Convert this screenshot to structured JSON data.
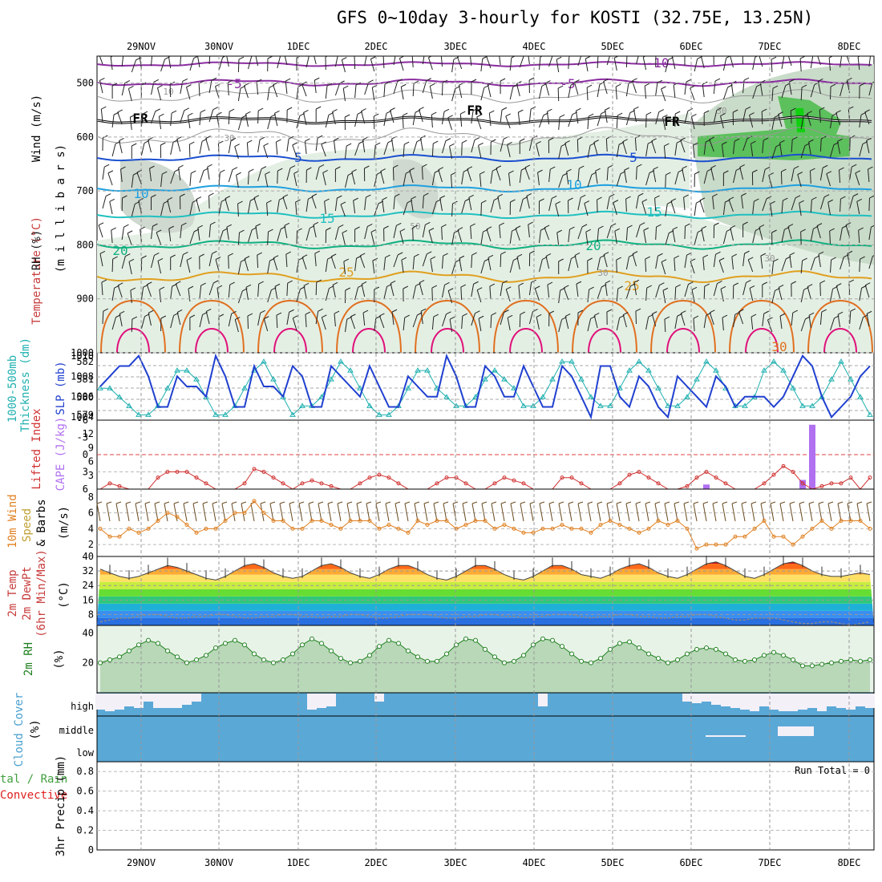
{
  "title": "GFS 0~10day 3-hourly for KOSTI (32.75E, 13.25N)",
  "colors": {
    "temperature": "#c83c3c",
    "wind": "#000000",
    "rh": "#40c040",
    "thickness": "#20b0b0",
    "slp": "#2040d0",
    "lifted": "#d03030",
    "cape": "#b070f0",
    "wind10": "#e08020",
    "speed": "#c0a030",
    "cloud": "#4aa0d0",
    "precip_total": "#40a040",
    "precip_conv": "#e02020",
    "rh2m": "#208020"
  },
  "x_axis": {
    "dates": [
      "29NOV",
      "30NOV",
      "1DEC",
      "2DEC",
      "3DEC",
      "4DEC",
      "5DEC",
      "6DEC",
      "7DEC",
      "8DEC"
    ]
  },
  "panels": {
    "upper": {
      "ylabel_wind": "Wind (m/s)",
      "ylabel_temp": "Temperature (°C)",
      "ylabel_rh": "RH (%)",
      "ylabel_mb": "(m i l l i b a r s)",
      "yticks": [
        "500",
        "600",
        "700",
        "800",
        "900",
        "1000"
      ],
      "contour_labels": {
        "m10": "-10",
        "m5a": "-5",
        "m5b": "-5",
        "fr1": "FR",
        "fr2": "FR",
        "fr3": "FR",
        "p5a": "5",
        "p5b": "5",
        "p10a": "10",
        "p10b": "10",
        "p15a": "15",
        "p15b": "15",
        "p20a": "20",
        "p20b": "20",
        "p25a": "25",
        "p25b": "25",
        "p30": "30",
        "rh10": "10",
        "rh30a": "30",
        "rh30b": "30",
        "rh50": "50",
        "rh30c": "30",
        "rh30d": "30"
      }
    },
    "slp": {
      "ylabel_thick": "Thickness (dm)",
      "ylabel_thick2": "1000-500mb",
      "ylabel_slp": "SLP (mb)",
      "yticks_left": [
        "582",
        "581",
        "580",
        "579"
      ],
      "yticks_right": [
        "1010",
        "1008",
        "1006",
        "1004"
      ]
    },
    "cape": {
      "ylabel_li": "Lifted Index",
      "ylabel_cape": "CAPE (J/kg)",
      "yticks_left": [
        "-6",
        "-3",
        "0",
        "3",
        "6"
      ],
      "yticks_right": [
        "12",
        "9",
        "6",
        "3"
      ]
    },
    "wind10": {
      "ylabel1": "10m Wind",
      "ylabel2": "Speed",
      "ylabel3": "& Barbs",
      "ylabel_units": "(m/s)",
      "yticks": [
        "8",
        "6",
        "4",
        "2"
      ]
    },
    "temp2m": {
      "ylabel1": "2m Temp",
      "ylabel2": "2m DewPt",
      "ylabel3": "(6hr Min/Max)",
      "ylabel_units": "(°C)",
      "yticks": [
        "40",
        "32",
        "24",
        "16",
        "8"
      ]
    },
    "rh2m": {
      "ylabel1": "2m RH",
      "ylabel_units": "(%)",
      "yticks": [
        "40",
        "20"
      ]
    },
    "cloud": {
      "ylabel1": "Cloud Cover",
      "ylabel_units": "(%)",
      "levels": [
        "high",
        "middle",
        "low"
      ]
    },
    "precip": {
      "ylabel1": "tal / Rain",
      "ylabel2": "Convective",
      "ylabel3": "3hr Precip (mm)",
      "yticks": [
        "0.8",
        "0.6",
        "0.4",
        "0.2",
        "0"
      ],
      "run_total": "Run Total = 0"
    }
  },
  "chart_data": [
    {
      "type": "line",
      "title": "SLP and 1000-500mb Thickness",
      "series": [
        {
          "name": "SLP (mb)",
          "values": [
            1007,
            1008,
            1009,
            1009,
            1010,
            1008,
            1005,
            1005,
            1008,
            1007,
            1007,
            1006,
            1010,
            1008,
            1005,
            1005,
            1009,
            1007,
            1007,
            1006,
            1009,
            1008,
            1005,
            1005,
            1009,
            1008,
            1007,
            1006,
            1009,
            1007,
            1005,
            1005,
            1008,
            1007,
            1006,
            1006,
            1010,
            1008,
            1005,
            1005,
            1009,
            1008,
            1006,
            1006,
            1009,
            1007,
            1005,
            1005,
            1009,
            1008,
            1006,
            1004,
            1009,
            1009,
            1006,
            1005,
            1008,
            1007,
            1005,
            1004,
            1008,
            1007,
            1006,
            1005,
            1008,
            1007,
            1005,
            1006,
            1006,
            1006,
            1005,
            1006,
            1008,
            1010,
            1009,
            1006,
            1004,
            1005,
            1006,
            1008,
            1009
          ]
        },
        {
          "name": "Thickness (dm)",
          "values": [
            580.5,
            580.5,
            580,
            579.5,
            579,
            579,
            579.5,
            580.5,
            581.5,
            581.5,
            581,
            580,
            579,
            579,
            579.5,
            580.5,
            581.5,
            582,
            581,
            580,
            579,
            579.5,
            579.5,
            580,
            581,
            582,
            581.5,
            580.5,
            579.5,
            579,
            579,
            579.5,
            580.5,
            581.5,
            581.5,
            580.5,
            580,
            579.5,
            579.5,
            580,
            581,
            581.5,
            581,
            580.5,
            579.5,
            579.5,
            580,
            581,
            582,
            582,
            581,
            580,
            579.5,
            579.5,
            580.5,
            581.5,
            582,
            581.5,
            580.5,
            579.5,
            579.5,
            580,
            581,
            582,
            581.5,
            580.5,
            579.5,
            579.5,
            580,
            581.5,
            582,
            581.5,
            580.5,
            579.5,
            579.5,
            580,
            581,
            582,
            581,
            580,
            579
          ]
        }
      ]
    },
    {
      "type": "line",
      "title": "Lifted Index and CAPE",
      "series": [
        {
          "name": "Lifted Index",
          "values": [
            6,
            5,
            5.5,
            6,
            6,
            6,
            4,
            3,
            3,
            3,
            4,
            5,
            6,
            6,
            6,
            5,
            2.5,
            3,
            4,
            5,
            6,
            5,
            4.5,
            5,
            5.5,
            6,
            6,
            5,
            4,
            3.5,
            4,
            5,
            6,
            6,
            6,
            5,
            4,
            4,
            5,
            6,
            6,
            5,
            4,
            4.5,
            5,
            6,
            6,
            6,
            4,
            4,
            5,
            6,
            6,
            6,
            5,
            3.5,
            3,
            4,
            5,
            6,
            6,
            5.5,
            4,
            3,
            4,
            5,
            6,
            6,
            6,
            5,
            3.5,
            2,
            3,
            5,
            6,
            5.5,
            5,
            5,
            4,
            6,
            4
          ]
        },
        {
          "name": "CAPE (J/kg)",
          "values": [
            0,
            0,
            0,
            0,
            0,
            0,
            0,
            0,
            0,
            0,
            0,
            0,
            0,
            0,
            0,
            0,
            0,
            0,
            0,
            0,
            0,
            0,
            0,
            0,
            0,
            0,
            0,
            0,
            0,
            0,
            0,
            0,
            0,
            0,
            0,
            0,
            0,
            0,
            0,
            0,
            0,
            0,
            0,
            0,
            0,
            0,
            0,
            0,
            0,
            0,
            0,
            0,
            0,
            0,
            0,
            0,
            0,
            0,
            0,
            0,
            0,
            0,
            0,
            1,
            0,
            0,
            0,
            0,
            0,
            0,
            0,
            0,
            0,
            2,
            14,
            0,
            0,
            0,
            0,
            0,
            0
          ]
        }
      ]
    },
    {
      "type": "line",
      "title": "10m Wind Speed",
      "series": [
        {
          "name": "Speed (m/s)",
          "values": [
            4,
            3,
            3,
            4,
            3.5,
            4,
            5,
            6,
            5.5,
            4.5,
            3.5,
            4,
            4,
            5,
            6,
            6,
            7.5,
            6,
            5,
            5,
            4,
            4,
            5,
            5,
            4.5,
            4,
            5,
            5,
            5,
            4,
            4.5,
            4,
            3.5,
            5,
            4.5,
            5,
            5,
            4,
            4.5,
            5,
            5,
            4,
            4.5,
            4,
            3.5,
            3.5,
            4,
            4,
            4.5,
            4,
            4,
            3.5,
            4.5,
            5,
            4.5,
            4,
            3.5,
            4,
            5,
            4.5,
            5,
            4,
            1.5,
            2,
            2,
            2,
            3,
            3,
            4,
            5,
            3,
            3,
            2,
            3,
            4,
            5,
            4,
            5,
            5,
            5,
            4
          ]
        }
      ]
    },
    {
      "type": "area",
      "title": "2m Temp / DewPt",
      "series": [
        {
          "name": "2m Temp (°C)",
          "values": [
            33,
            31,
            29,
            28,
            29,
            31,
            33,
            35,
            34,
            32,
            30,
            28,
            27,
            29,
            32,
            35,
            36,
            34,
            31,
            29,
            28,
            29,
            32,
            35,
            36,
            34,
            31,
            29,
            28,
            30,
            33,
            35,
            35,
            33,
            30,
            28,
            27,
            29,
            32,
            35,
            35,
            33,
            30,
            28,
            27,
            29,
            32,
            35,
            35,
            33,
            30,
            29,
            28,
            30,
            33,
            35,
            36,
            34,
            31,
            29,
            28,
            30,
            33,
            36,
            37,
            35,
            32,
            29,
            28,
            30,
            33,
            36,
            37,
            35,
            32,
            30,
            29,
            29,
            30,
            31,
            30
          ]
        },
        {
          "name": "2m DewPt (°C)",
          "values": [
            4,
            5,
            6,
            6,
            7,
            8,
            8,
            7,
            6,
            6,
            7,
            7,
            8,
            8,
            7,
            6,
            6,
            7,
            7,
            8,
            8,
            7,
            7,
            6,
            7,
            7,
            8,
            8,
            7,
            6,
            6,
            7,
            8,
            8,
            8,
            7,
            6,
            6,
            7,
            7,
            8,
            8,
            7,
            7,
            6,
            7,
            7,
            8,
            8,
            8,
            7,
            6,
            7,
            7,
            8,
            8,
            7,
            7,
            6,
            6,
            7,
            7,
            8,
            8,
            7,
            6,
            5,
            5,
            6,
            6,
            6,
            5,
            4,
            3,
            3,
            4,
            4,
            3,
            2,
            3,
            4
          ]
        }
      ]
    },
    {
      "type": "line",
      "title": "2m RH",
      "series": [
        {
          "name": "2m RH (%)",
          "values": [
            20,
            22,
            24,
            28,
            32,
            35,
            33,
            28,
            24,
            20,
            22,
            25,
            30,
            33,
            35,
            32,
            26,
            22,
            20,
            22,
            26,
            32,
            36,
            33,
            28,
            23,
            20,
            21,
            25,
            31,
            35,
            33,
            28,
            24,
            21,
            21,
            26,
            32,
            36,
            35,
            29,
            24,
            20,
            21,
            25,
            32,
            36,
            35,
            31,
            26,
            21,
            20,
            23,
            29,
            33,
            34,
            30,
            26,
            23,
            20,
            22,
            26,
            29,
            30,
            29,
            26,
            22,
            21,
            22,
            25,
            27,
            25,
            22,
            18,
            18,
            19,
            20,
            21,
            22,
            21,
            22
          ]
        }
      ]
    },
    {
      "type": "bar",
      "title": "3hr Precip (mm)",
      "ylim": [
        0,
        0.9
      ],
      "series": [
        {
          "name": "Total / Rain",
          "values": []
        },
        {
          "name": "Convective",
          "values": []
        }
      ]
    }
  ]
}
